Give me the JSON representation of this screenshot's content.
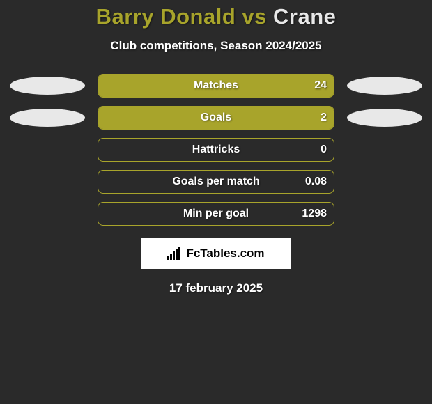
{
  "header": {
    "title_left": "Barry Donald",
    "title_vs": " vs ",
    "title_right": "Crane",
    "subtitle": "Club competitions, Season 2024/2025",
    "title_left_color": "#a8a42b",
    "title_right_color": "#e8e8e8"
  },
  "chart": {
    "type": "bar",
    "bar_fill_color": "#a8a42b",
    "bar_border_color": "#a8a42b",
    "track_background": "transparent",
    "ellipse_color": "#e8e8e8",
    "text_color": "#ffffff",
    "background_color": "#2a2a2a",
    "label_fontsize": 16,
    "value_fontsize": 16,
    "rows": [
      {
        "label": "Matches",
        "value": "24",
        "fill_pct": 100,
        "show_ellipses": true
      },
      {
        "label": "Goals",
        "value": "2",
        "fill_pct": 100,
        "show_ellipses": true
      },
      {
        "label": "Hattricks",
        "value": "0",
        "fill_pct": 0,
        "show_ellipses": false
      },
      {
        "label": "Goals per match",
        "value": "0.08",
        "fill_pct": 0,
        "show_ellipses": false
      },
      {
        "label": "Min per goal",
        "value": "1298",
        "fill_pct": 0,
        "show_ellipses": false
      }
    ]
  },
  "brand": {
    "text": "FcTables.com"
  },
  "footer": {
    "date": "17 february 2025"
  }
}
